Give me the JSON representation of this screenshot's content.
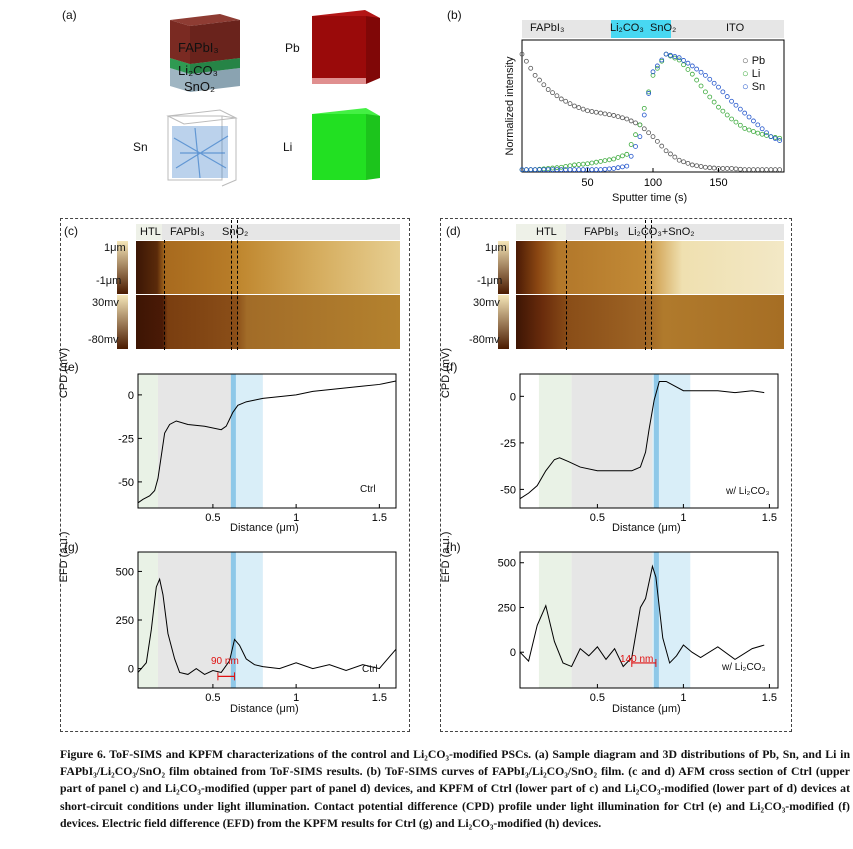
{
  "panels": {
    "a": {
      "label": "(a)",
      "stack_layers": [
        "FAPbI3",
        "Li2CO3",
        "SnO2"
      ],
      "stack_label_fapbi3": "FAPbI₃",
      "stack_label_li2co3": "Li₂CO₃",
      "stack_label_sno2": "SnO₂",
      "cube_labels": [
        "Pb",
        "Sn",
        "Li"
      ],
      "colors": {
        "Pb": "#9a0a0a",
        "Sn": "#3d7fc9",
        "Li": "#22e022",
        "FAPbI3": "#7a2a22",
        "Li2CO3": "#2f9a52",
        "SnO2": "#9fb5c2"
      }
    },
    "b": {
      "label": "(b)",
      "bar_labels": [
        "FAPbI₃",
        "Li₂CO₃",
        "SnO₂",
        "ITO"
      ],
      "ylabel": "Normalized intensity",
      "xlabel": "Sputter time (s)",
      "legend": [
        "Pb",
        "Li",
        "Sn"
      ],
      "colors": {
        "Pb": "#555555",
        "Li": "#3caa3c",
        "Sn": "#2255cc",
        "highlight": "#2fd0f0"
      }
    },
    "c": {
      "label": "(c)",
      "bar_labels": [
        "HTL",
        "FAPbI₃",
        "SnO₂"
      ],
      "afm_scale": [
        "1μm",
        "-1μm"
      ],
      "kpfm_scale": [
        "30mv",
        "-80mv"
      ]
    },
    "d": {
      "label": "(d)",
      "bar_labels": [
        "HTL",
        "FAPbI₃",
        "Li₂CO₃+SnO₂"
      ],
      "afm_scale": [
        "1μm",
        "-1μm"
      ],
      "kpfm_scale": [
        "30mv",
        "-80mv"
      ]
    },
    "e": {
      "label": "(e)",
      "ylabel": "CPD (mV)",
      "xlabel": "Distance (μm)",
      "tag": "Ctrl"
    },
    "f": {
      "label": "(f)",
      "ylabel": "CPD (mV)",
      "xlabel": "Distance (μm)",
      "tag": "w/ Li₂CO₃"
    },
    "g": {
      "label": "(g)",
      "ylabel": "EFD (a.u.)",
      "xlabel": "Distance (μm)",
      "tag": "Ctrl",
      "annotation": "90 nm"
    },
    "h": {
      "label": "(h)",
      "ylabel": "EFD (a.u.)",
      "xlabel": "Distance (μm)",
      "tag": "w/ Li₂CO₃",
      "annotation": "140 nm"
    }
  },
  "chart_data": [
    {
      "panel": "b",
      "type": "scatter",
      "xlabel": "Sputter time (s)",
      "ylabel": "Normalized intensity",
      "xlim": [
        0,
        200
      ],
      "ylim": [
        0,
        1.12
      ],
      "xticks": [
        50,
        100,
        150
      ],
      "series": [
        {
          "name": "Pb",
          "x": [
            0,
            10,
            20,
            30,
            40,
            50,
            60,
            70,
            80,
            90,
            100,
            110,
            120,
            130,
            140,
            150,
            160,
            170,
            180,
            190,
            200
          ],
          "y": [
            1.0,
            0.82,
            0.7,
            0.62,
            0.56,
            0.52,
            0.5,
            0.48,
            0.45,
            0.4,
            0.3,
            0.18,
            0.1,
            0.06,
            0.04,
            0.03,
            0.03,
            0.02,
            0.02,
            0.02,
            0.02
          ]
        },
        {
          "name": "Li",
          "x": [
            0,
            10,
            20,
            30,
            40,
            50,
            60,
            70,
            80,
            90,
            100,
            110,
            120,
            130,
            140,
            150,
            160,
            170,
            180,
            190,
            200
          ],
          "y": [
            0.02,
            0.02,
            0.03,
            0.04,
            0.06,
            0.07,
            0.09,
            0.11,
            0.15,
            0.4,
            0.82,
            1.0,
            0.95,
            0.83,
            0.68,
            0.55,
            0.45,
            0.37,
            0.33,
            0.3,
            0.28
          ]
        },
        {
          "name": "Sn",
          "x": [
            0,
            10,
            20,
            30,
            40,
            50,
            60,
            70,
            80,
            90,
            100,
            110,
            120,
            130,
            140,
            150,
            160,
            170,
            180,
            190,
            200
          ],
          "y": [
            0.02,
            0.02,
            0.02,
            0.02,
            0.02,
            0.02,
            0.02,
            0.03,
            0.05,
            0.3,
            0.85,
            1.0,
            0.97,
            0.9,
            0.82,
            0.72,
            0.6,
            0.5,
            0.4,
            0.3,
            0.25
          ]
        }
      ]
    },
    {
      "panel": "e",
      "type": "line",
      "xlabel": "Distance (μm)",
      "ylabel": "CPD (mV)",
      "xlim": [
        0.05,
        1.6
      ],
      "ylim": [
        -65,
        12
      ],
      "xticks": [
        0.5,
        1.0,
        1.5
      ],
      "yticks": [
        0,
        -25,
        -50
      ],
      "regions": [
        {
          "from": 0.05,
          "to": 0.17,
          "kind": "HTL"
        },
        {
          "from": 0.17,
          "to": 0.62,
          "kind": "FAPbI3"
        },
        {
          "from": 0.62,
          "to": 0.8,
          "kind": "SnO2"
        }
      ],
      "x": [
        0.05,
        0.08,
        0.12,
        0.15,
        0.17,
        0.19,
        0.21,
        0.24,
        0.28,
        0.35,
        0.45,
        0.55,
        0.58,
        0.6,
        0.62,
        0.65,
        0.7,
        0.75,
        0.8,
        0.9,
        1.0,
        1.1,
        1.2,
        1.3,
        1.4,
        1.5,
        1.6
      ],
      "y": [
        -62,
        -60,
        -58,
        -55,
        -48,
        -35,
        -22,
        -17,
        -15,
        -17,
        -18,
        -20,
        -18,
        -14,
        -10,
        -6,
        -4,
        -3,
        -2,
        -1,
        0,
        2,
        3,
        4,
        5,
        6,
        8
      ]
    },
    {
      "panel": "f",
      "type": "line",
      "xlabel": "Distance (μm)",
      "ylabel": "CPD (mV)",
      "xlim": [
        0.05,
        1.55
      ],
      "ylim": [
        -60,
        12
      ],
      "xticks": [
        0.5,
        1.0,
        1.5
      ],
      "yticks": [
        0,
        -25,
        -50
      ],
      "regions": [
        {
          "from": 0.16,
          "to": 0.35,
          "kind": "HTL"
        },
        {
          "from": 0.35,
          "to": 0.82,
          "kind": "FAPbI3"
        },
        {
          "from": 0.82,
          "to": 1.04,
          "kind": "SnO2"
        }
      ],
      "x": [
        0.05,
        0.1,
        0.15,
        0.2,
        0.25,
        0.28,
        0.33,
        0.4,
        0.5,
        0.6,
        0.7,
        0.75,
        0.78,
        0.8,
        0.83,
        0.86,
        0.9,
        1.0,
        1.1,
        1.2,
        1.3,
        1.4,
        1.47
      ],
      "y": [
        -55,
        -52,
        -48,
        -40,
        -34,
        -33,
        -35,
        -38,
        -40,
        -40,
        -40,
        -38,
        -30,
        -18,
        -2,
        8,
        8,
        3,
        3,
        3,
        2,
        3,
        2
      ]
    },
    {
      "panel": "g",
      "type": "line",
      "xlabel": "Distance (μm)",
      "ylabel": "EFD (a.u.)",
      "xlim": [
        0.05,
        1.6
      ],
      "ylim": [
        -100,
        600
      ],
      "xticks": [
        0.5,
        1.0,
        1.5
      ],
      "yticks": [
        0,
        250,
        500
      ],
      "x": [
        0.05,
        0.1,
        0.13,
        0.16,
        0.18,
        0.2,
        0.23,
        0.27,
        0.3,
        0.35,
        0.4,
        0.45,
        0.5,
        0.55,
        0.6,
        0.63,
        0.66,
        0.7,
        0.75,
        0.8,
        0.9,
        1.0,
        1.1,
        1.2,
        1.3,
        1.4,
        1.5,
        1.6
      ],
      "y": [
        -20,
        30,
        200,
        420,
        460,
        380,
        180,
        50,
        -20,
        -30,
        0,
        -30,
        -10,
        -20,
        40,
        150,
        120,
        50,
        20,
        10,
        0,
        30,
        0,
        20,
        -10,
        20,
        0,
        100
      ]
    },
    {
      "panel": "h",
      "type": "line",
      "xlabel": "Distance (μm)",
      "ylabel": "EFD (a.u.)",
      "xlim": [
        0.05,
        1.55
      ],
      "ylim": [
        -200,
        560
      ],
      "xticks": [
        0.5,
        1.0,
        1.5
      ],
      "yticks": [
        0,
        250,
        500
      ],
      "x": [
        0.05,
        0.1,
        0.15,
        0.2,
        0.25,
        0.3,
        0.35,
        0.4,
        0.45,
        0.5,
        0.55,
        0.6,
        0.65,
        0.7,
        0.75,
        0.78,
        0.82,
        0.84,
        0.88,
        0.92,
        0.96,
        1.0,
        1.05,
        1.1,
        1.2,
        1.3,
        1.4,
        1.47
      ],
      "y": [
        0,
        -50,
        150,
        260,
        60,
        -60,
        -80,
        20,
        -20,
        30,
        -40,
        20,
        -80,
        -30,
        250,
        300,
        480,
        420,
        80,
        -60,
        -20,
        40,
        0,
        -30,
        30,
        -40,
        20,
        40
      ]
    }
  ],
  "caption": {
    "title": "Figure 6. ToF-SIMS and KPFM characterizations of the control and Li₂CO₃-modified PSCs.",
    "body": "(a) Sample diagram and 3D distributions of Pb, Sn, and Li in FAPbI₃/Li₂CO₃/SnO₂ film obtained from ToF-SIMS results. (b) ToF-SIMS curves of FAPbI₃/Li₂CO₃/SnO₂ film. (c and d) AFM cross section of Ctrl (upper part of panel c) and Li₂CO₃-modified (upper part of panel d) devices, and KPFM of Ctrl (lower part of c) and Li₂CO₃-modified (lower part of d) devices at short-circuit conditions under light illumination. Contact potential difference (CPD) profile under light illumination for Ctrl (e) and Li₂CO₃-modified (f) devices. Electric field difference (EFD) from the KPFM results for Ctrl (g) and Li₂CO₃-modified (h) devices."
  }
}
